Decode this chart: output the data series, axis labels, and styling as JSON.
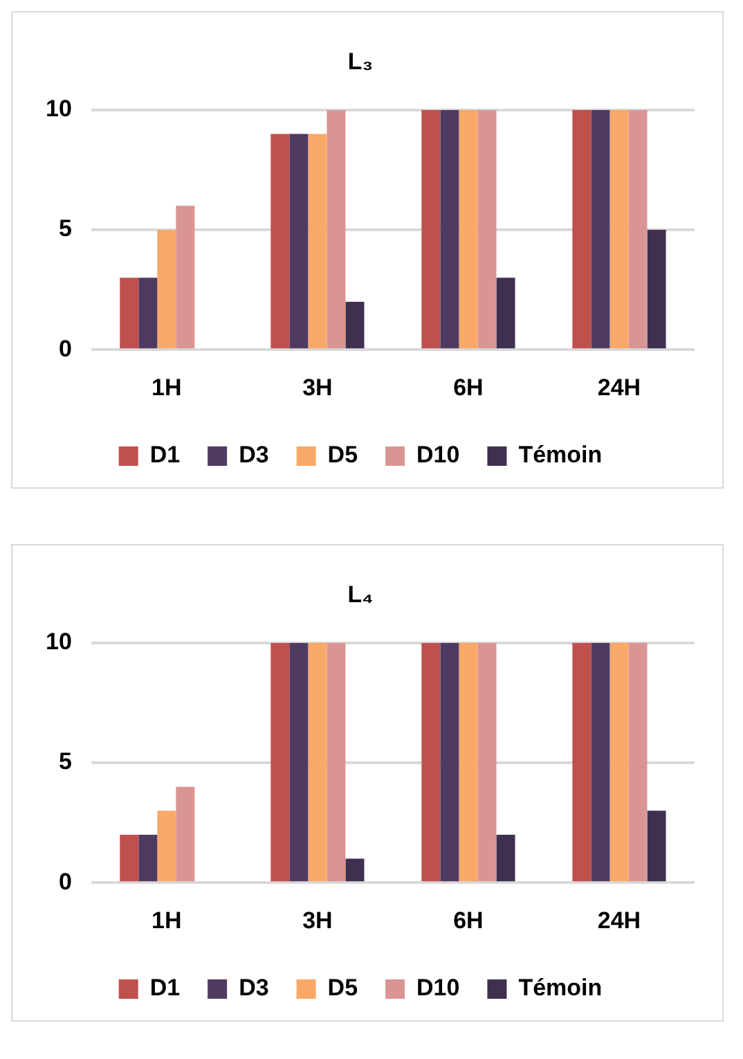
{
  "chart_data": [
    {
      "type": "bar",
      "title": "L₃",
      "categories": [
        "1H",
        "3H",
        "6H",
        "24H"
      ],
      "ylim": [
        0,
        10
      ],
      "yticks": [
        0,
        5,
        10
      ],
      "grid": "y",
      "legend": "bottom",
      "series": [
        {
          "name": "D1",
          "color": "#c0504d",
          "values": [
            3,
            9,
            10,
            10
          ]
        },
        {
          "name": "D3",
          "color": "#4f3b62",
          "values": [
            3,
            9,
            10,
            10
          ]
        },
        {
          "name": "D5",
          "color": "#f9a868",
          "values": [
            5,
            9,
            10,
            10
          ]
        },
        {
          "name": "D10",
          "color": "#d99594",
          "values": [
            6,
            10,
            10,
            10
          ]
        },
        {
          "name": "Témoin",
          "color": "#3f3050",
          "values": [
            0,
            2,
            3,
            5
          ]
        }
      ]
    },
    {
      "type": "bar",
      "title": "L₄",
      "categories": [
        "1H",
        "3H",
        "6H",
        "24H"
      ],
      "ylim": [
        0,
        10
      ],
      "yticks": [
        0,
        5,
        10
      ],
      "grid": "y",
      "legend": "bottom",
      "series": [
        {
          "name": "D1",
          "color": "#c0504d",
          "values": [
            2,
            10,
            10,
            10
          ]
        },
        {
          "name": "D3",
          "color": "#4f3b62",
          "values": [
            2,
            10,
            10,
            10
          ]
        },
        {
          "name": "D5",
          "color": "#f9a868",
          "values": [
            3,
            10,
            10,
            10
          ]
        },
        {
          "name": "D10",
          "color": "#d99594",
          "values": [
            4,
            10,
            10,
            10
          ]
        },
        {
          "name": "Témoin",
          "color": "#3f3050",
          "values": [
            0,
            1,
            2,
            3
          ]
        }
      ]
    }
  ]
}
